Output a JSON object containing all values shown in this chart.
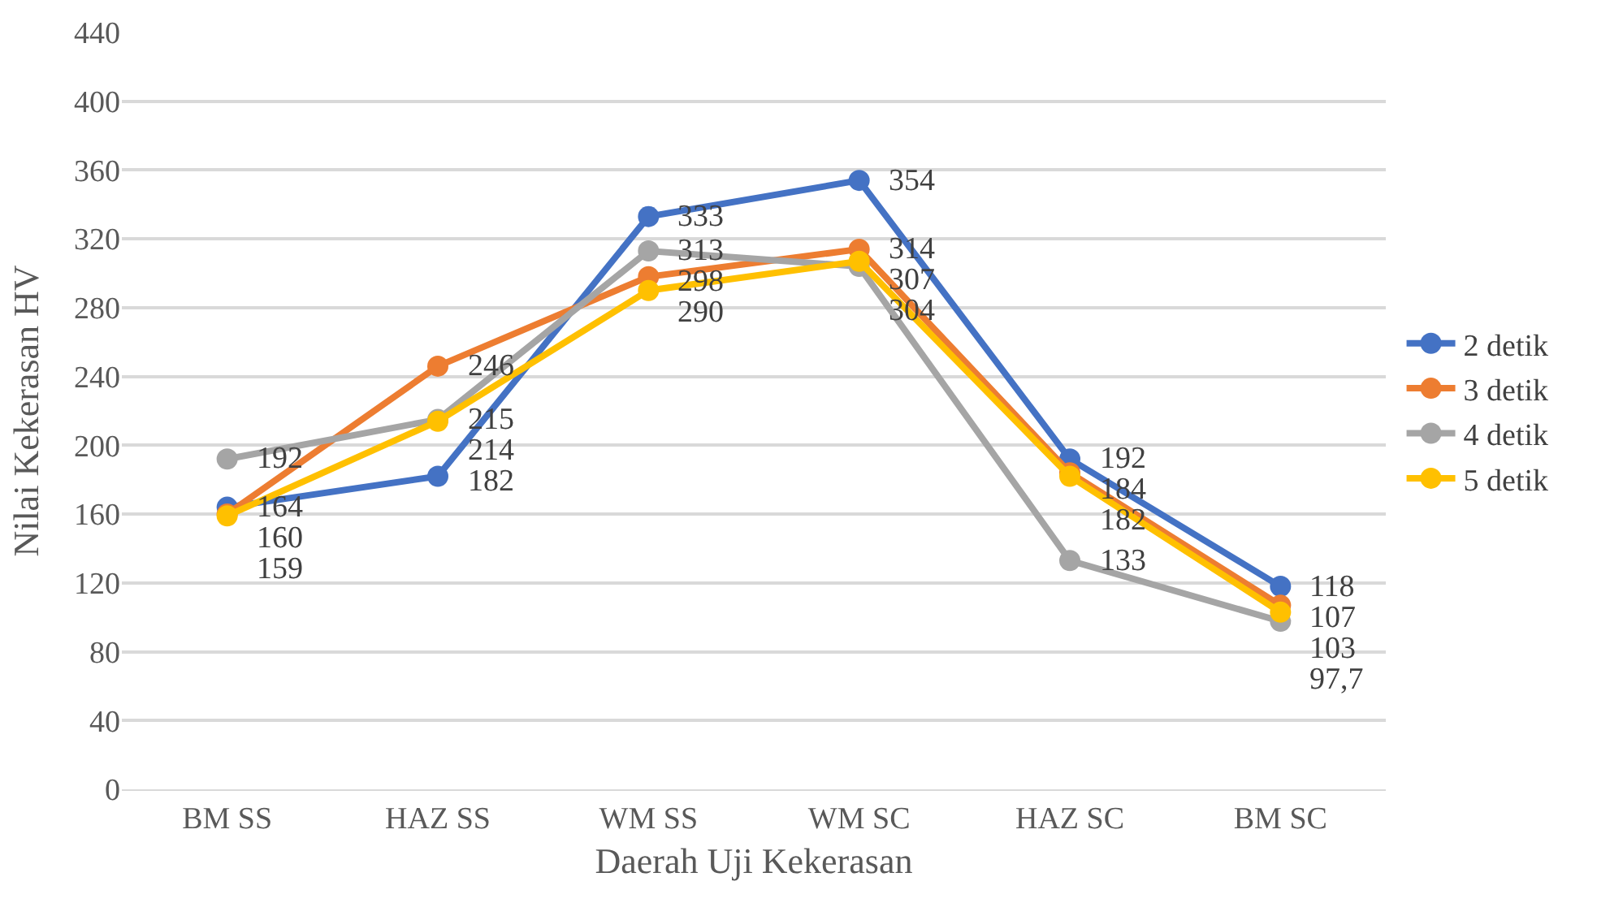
{
  "chart_data": {
    "type": "line",
    "xlabel": "Daerah Uji Kekerasan",
    "ylabel": "Nilai Kekerasan HV",
    "categories": [
      "BM SS",
      "HAZ SS",
      "WM SS",
      "WM SC",
      "HAZ SC",
      "BM SC"
    ],
    "series": [
      {
        "name": "2 detik",
        "color": "#4472c4",
        "values": [
          164,
          182,
          333,
          354,
          192,
          118
        ],
        "value_labels": [
          "164",
          "182",
          "333",
          "354",
          "192",
          "118"
        ]
      },
      {
        "name": "3 detik",
        "color": "#ed7d31",
        "values": [
          160,
          246,
          298,
          314,
          184,
          107
        ],
        "value_labels": [
          "160",
          "246",
          "298",
          "314",
          "184",
          "107"
        ]
      },
      {
        "name": "4 detik",
        "color": "#a5a5a5",
        "values": [
          192,
          215,
          313,
          304,
          133,
          97.7
        ],
        "value_labels": [
          "192",
          "215",
          "313",
          "304",
          "133",
          "97,7"
        ]
      },
      {
        "name": "5 detik",
        "color": "#ffc000",
        "values": [
          159,
          214,
          290,
          307,
          182,
          103
        ],
        "value_labels": [
          "159",
          "214",
          "290",
          "307",
          "182",
          "103"
        ]
      }
    ],
    "ylim": [
      0,
      440
    ],
    "yticks": [
      0,
      40,
      80,
      120,
      160,
      200,
      240,
      280,
      320,
      360,
      400,
      440
    ],
    "grid": "y",
    "legend": "right",
    "marker": "circle",
    "line_style": "solid"
  }
}
